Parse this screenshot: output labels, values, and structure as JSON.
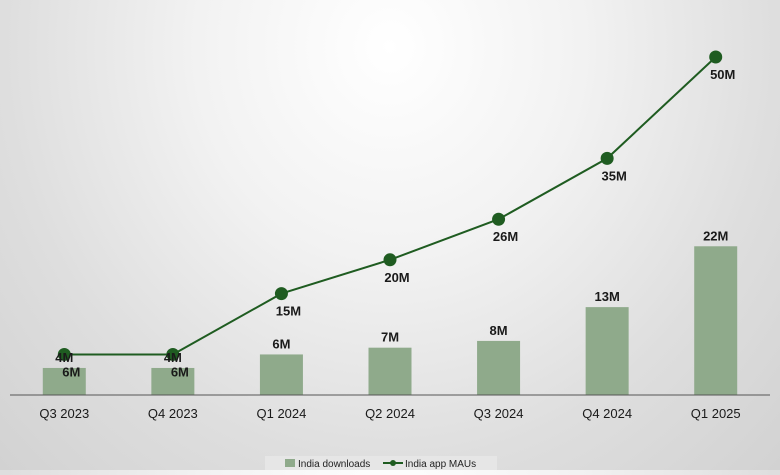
{
  "chart_data": {
    "type": "bar",
    "categories": [
      "Q3 2023",
      "Q4 2023",
      "Q1 2024",
      "Q2 2024",
      "Q3 2024",
      "Q4 2024",
      "Q1 2025"
    ],
    "series": [
      {
        "name": "India downloads",
        "type": "bar",
        "values": [
          4,
          4,
          6,
          7,
          8,
          13,
          22
        ],
        "labels": [
          "4M",
          "4M",
          "6M",
          "7M",
          "8M",
          "13M",
          "22M"
        ],
        "color": "#8faa8b"
      },
      {
        "name": "India app MAUs",
        "type": "line",
        "values": [
          6,
          6,
          15,
          20,
          26,
          35,
          50
        ],
        "labels": [
          "6M",
          "6M",
          "15M",
          "20M",
          "26M",
          "35M",
          "50M"
        ],
        "color": "#1f5c21"
      }
    ],
    "legend_position": "bottom",
    "grid": false,
    "axis_color": "#555555"
  }
}
